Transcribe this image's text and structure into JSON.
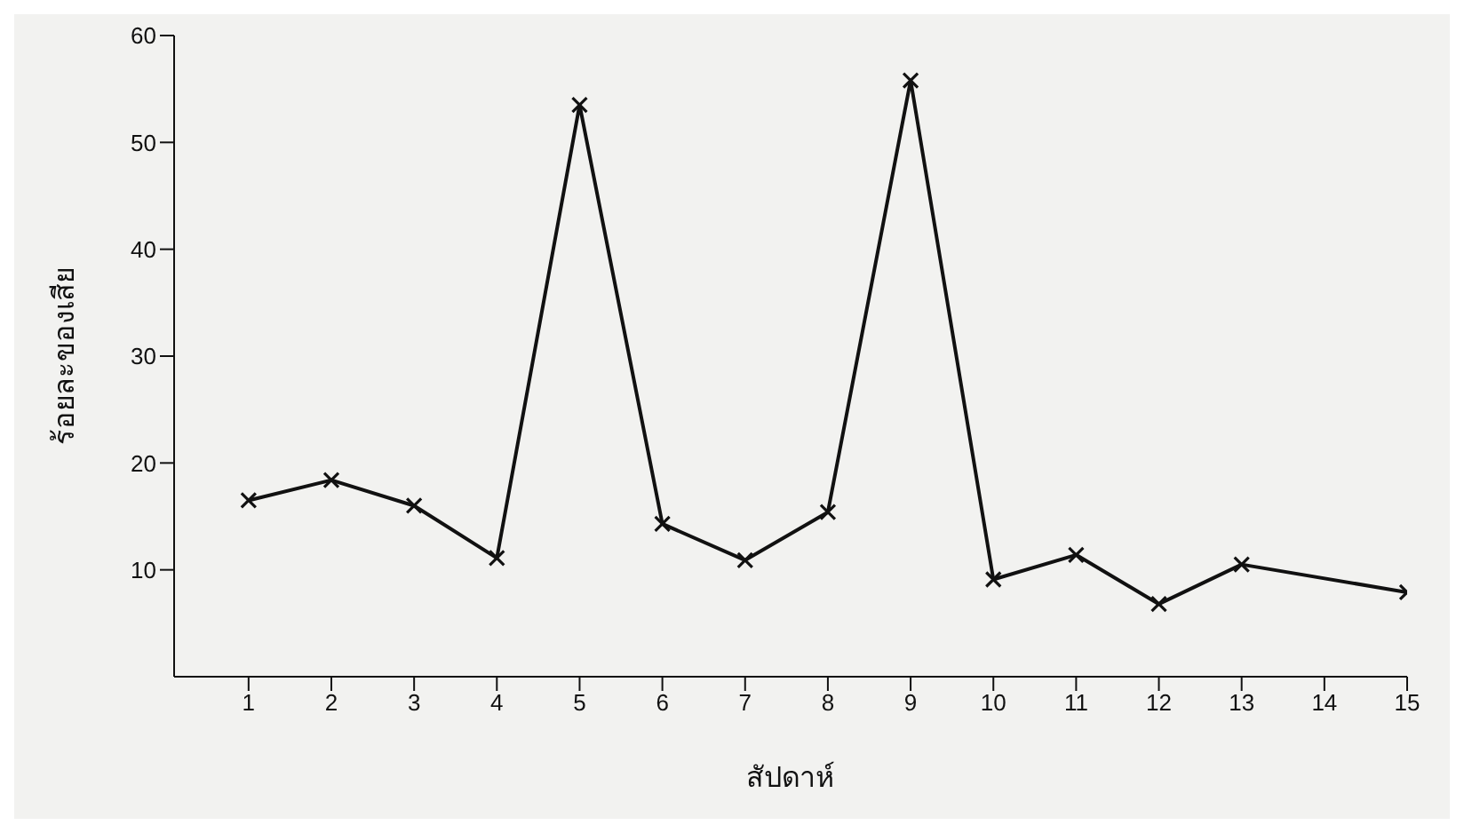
{
  "chart_data": {
    "type": "line",
    "xlabel": "สัปดาห์",
    "ylabel": "ร้อยละของเสีย",
    "x": [
      1,
      2,
      3,
      4,
      5,
      6,
      7,
      8,
      9,
      10,
      11,
      12,
      13,
      14,
      15
    ],
    "series": [
      {
        "color": "#111111",
        "values": [
          16.5,
          18.4,
          16.0,
          11.1,
          53.5,
          14.3,
          10.9,
          15.4,
          55.8,
          9.1,
          11.4,
          6.8,
          10.5,
          null,
          7.9
        ]
      }
    ],
    "xlim": [
      0.1,
      15
    ],
    "xticks": [
      1,
      2,
      3,
      4,
      5,
      6,
      7,
      8,
      9,
      10,
      11,
      12,
      13,
      14,
      15
    ],
    "ylim": [
      0,
      60
    ],
    "yticks": [
      10,
      20,
      30,
      40,
      50,
      60
    ],
    "marker": "cross",
    "line_style": "solid"
  }
}
